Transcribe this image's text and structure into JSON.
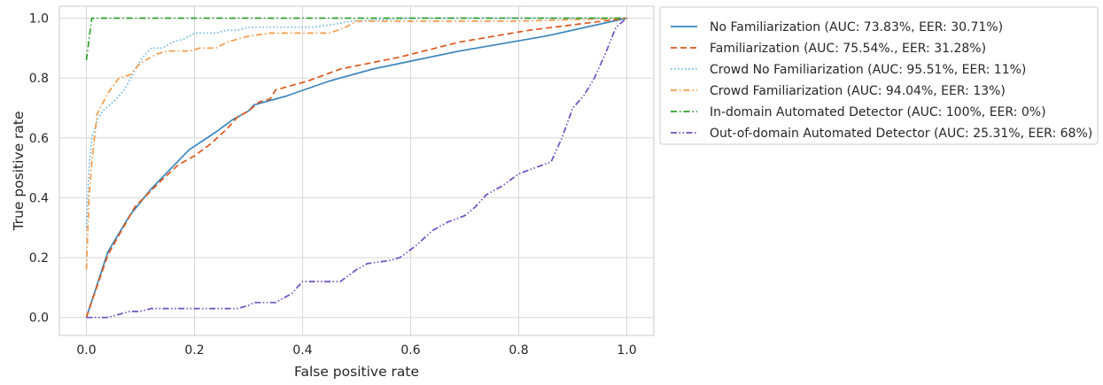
{
  "chart_data": {
    "type": "line",
    "title": "",
    "xlabel": "False positive rate",
    "ylabel": "True positive rate",
    "xlim": [
      -0.05,
      1.05
    ],
    "ylim": [
      -0.06,
      1.04
    ],
    "xticks": [
      0.0,
      0.2,
      0.4,
      0.6,
      0.8,
      1.0
    ],
    "yticks": [
      0.0,
      0.2,
      0.4,
      0.6,
      0.8,
      1.0
    ],
    "xtick_labels": [
      "0.0",
      "0.2",
      "0.4",
      "0.6",
      "0.8",
      "1.0"
    ],
    "ytick_labels": [
      "0.0",
      "0.2",
      "0.4",
      "0.6",
      "0.8",
      "1.0"
    ],
    "grid": true,
    "legend_position": "outside-right-top",
    "series": [
      {
        "name": "No Familiarization (AUC: 73.83%, EER: 30.71%)",
        "color": "#3a86bd",
        "style": "solid",
        "x": [
          0,
          0.04,
          0.08,
          0.12,
          0.19,
          0.24,
          0.27,
          0.3,
          0.31,
          0.37,
          0.45,
          0.53,
          0.69,
          0.85,
          1.0
        ],
        "y": [
          0,
          0.22,
          0.34,
          0.43,
          0.56,
          0.62,
          0.66,
          0.69,
          0.71,
          0.74,
          0.79,
          0.83,
          0.89,
          0.94,
          1.0
        ]
      },
      {
        "name": "Familiarization (AUC: 75.54%., EER: 31.28%)",
        "color": "#e0561a",
        "style": "dashed",
        "x": [
          0,
          0.04,
          0.09,
          0.14,
          0.17,
          0.2,
          0.23,
          0.26,
          0.28,
          0.3,
          0.32,
          0.34,
          0.35,
          0.37,
          0.41,
          0.47,
          0.58,
          0.69,
          0.82,
          1.0
        ],
        "y": [
          0,
          0.21,
          0.37,
          0.46,
          0.51,
          0.54,
          0.58,
          0.63,
          0.67,
          0.69,
          0.72,
          0.73,
          0.76,
          0.77,
          0.79,
          0.83,
          0.87,
          0.92,
          0.96,
          1.0
        ]
      },
      {
        "name": "Crowd No Familiarization (AUC: 95.51%, EER: 11%)",
        "color": "#6bb6e0",
        "style": "dotted",
        "x": [
          0,
          0.005,
          0.01,
          0.02,
          0.03,
          0.05,
          0.07,
          0.1,
          0.12,
          0.14,
          0.16,
          0.18,
          0.2,
          0.22,
          0.24,
          0.26,
          0.28,
          0.3,
          0.36,
          0.42,
          0.46,
          0.49,
          0.6,
          1.0
        ],
        "y": [
          0.3,
          0.5,
          0.6,
          0.66,
          0.69,
          0.72,
          0.76,
          0.86,
          0.9,
          0.9,
          0.92,
          0.93,
          0.95,
          0.95,
          0.95,
          0.96,
          0.96,
          0.97,
          0.97,
          0.97,
          0.98,
          0.99,
          1.0,
          1.0
        ]
      },
      {
        "name": "Crowd Familiarization (AUC: 94.04%, EER: 13%)",
        "color": "#f39c4a",
        "style": "dashdot",
        "x": [
          0,
          0.005,
          0.01,
          0.02,
          0.04,
          0.06,
          0.08,
          0.1,
          0.12,
          0.13,
          0.15,
          0.19,
          0.21,
          0.24,
          0.26,
          0.28,
          0.3,
          0.34,
          0.4,
          0.45,
          0.48,
          0.5,
          0.6,
          0.8,
          1.0
        ],
        "y": [
          0.16,
          0.4,
          0.52,
          0.68,
          0.75,
          0.8,
          0.81,
          0.85,
          0.87,
          0.88,
          0.89,
          0.89,
          0.9,
          0.9,
          0.92,
          0.93,
          0.94,
          0.95,
          0.95,
          0.95,
          0.97,
          0.99,
          0.99,
          0.99,
          1.0
        ]
      },
      {
        "name": "In-domain Automated Detector (AUC: 100%, EER: 0%)",
        "color": "#2ca02c",
        "style": "dashdot",
        "x": [
          0,
          0,
          0.01,
          1.0
        ],
        "y": [
          0.86,
          0.86,
          1.0,
          1.0
        ]
      },
      {
        "name": "Out-of-domain Automated Detector (AUC: 25.31%, EER: 68%)",
        "color": "#6a51c4",
        "style": "dashdotdot",
        "x": [
          0,
          0.04,
          0.08,
          0.1,
          0.12,
          0.2,
          0.28,
          0.3,
          0.31,
          0.35,
          0.38,
          0.4,
          0.47,
          0.5,
          0.52,
          0.56,
          0.58,
          0.61,
          0.64,
          0.67,
          0.7,
          0.72,
          0.74,
          0.77,
          0.8,
          0.83,
          0.86,
          0.88,
          0.9,
          0.92,
          0.94,
          0.96,
          0.98,
          1.0
        ],
        "y": [
          0,
          0,
          0.02,
          0.02,
          0.03,
          0.03,
          0.03,
          0.04,
          0.05,
          0.05,
          0.08,
          0.12,
          0.12,
          0.16,
          0.18,
          0.19,
          0.2,
          0.24,
          0.29,
          0.32,
          0.34,
          0.37,
          0.41,
          0.44,
          0.48,
          0.5,
          0.52,
          0.6,
          0.7,
          0.74,
          0.8,
          0.88,
          0.97,
          1.0
        ]
      }
    ]
  }
}
